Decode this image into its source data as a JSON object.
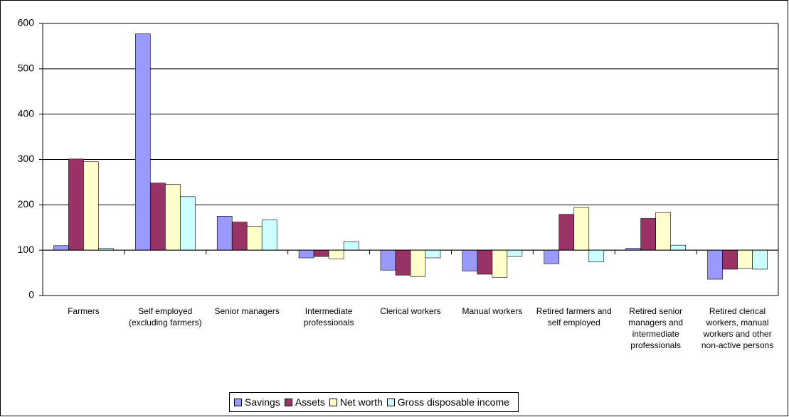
{
  "chart_data": {
    "type": "bar",
    "categories": [
      "Farmers",
      "Self employed (excluding farmers)",
      "Senior managers",
      "Intermediate professionals",
      "Clerical workers",
      "Manual workers",
      "Retired farmers and self employed",
      "Retired senior managers and intermediate professionals",
      "Retired clerical workers, manual workers and other non-active persons"
    ],
    "series": [
      {
        "name": "Savings",
        "color": "#9999ff",
        "values": [
          110,
          577,
          175,
          83,
          56,
          54,
          70,
          104,
          36
        ]
      },
      {
        "name": "Assets",
        "color": "#993366",
        "values": [
          301,
          248,
          162,
          86,
          45,
          47,
          179,
          170,
          58
        ]
      },
      {
        "name": "Net worth",
        "color": "#ffffcc",
        "values": [
          295,
          245,
          153,
          81,
          42,
          40,
          194,
          183,
          60
        ]
      },
      {
        "name": "Gross disposable income",
        "color": "#ccffff",
        "values": [
          104,
          218,
          167,
          119,
          83,
          86,
          74,
          111,
          58
        ]
      }
    ],
    "ylim": [
      0,
      600
    ],
    "yticks": [
      0,
      100,
      200,
      300,
      400,
      500,
      600
    ],
    "x_axis_crossing": 100,
    "grid": true,
    "legend": "bottom"
  }
}
